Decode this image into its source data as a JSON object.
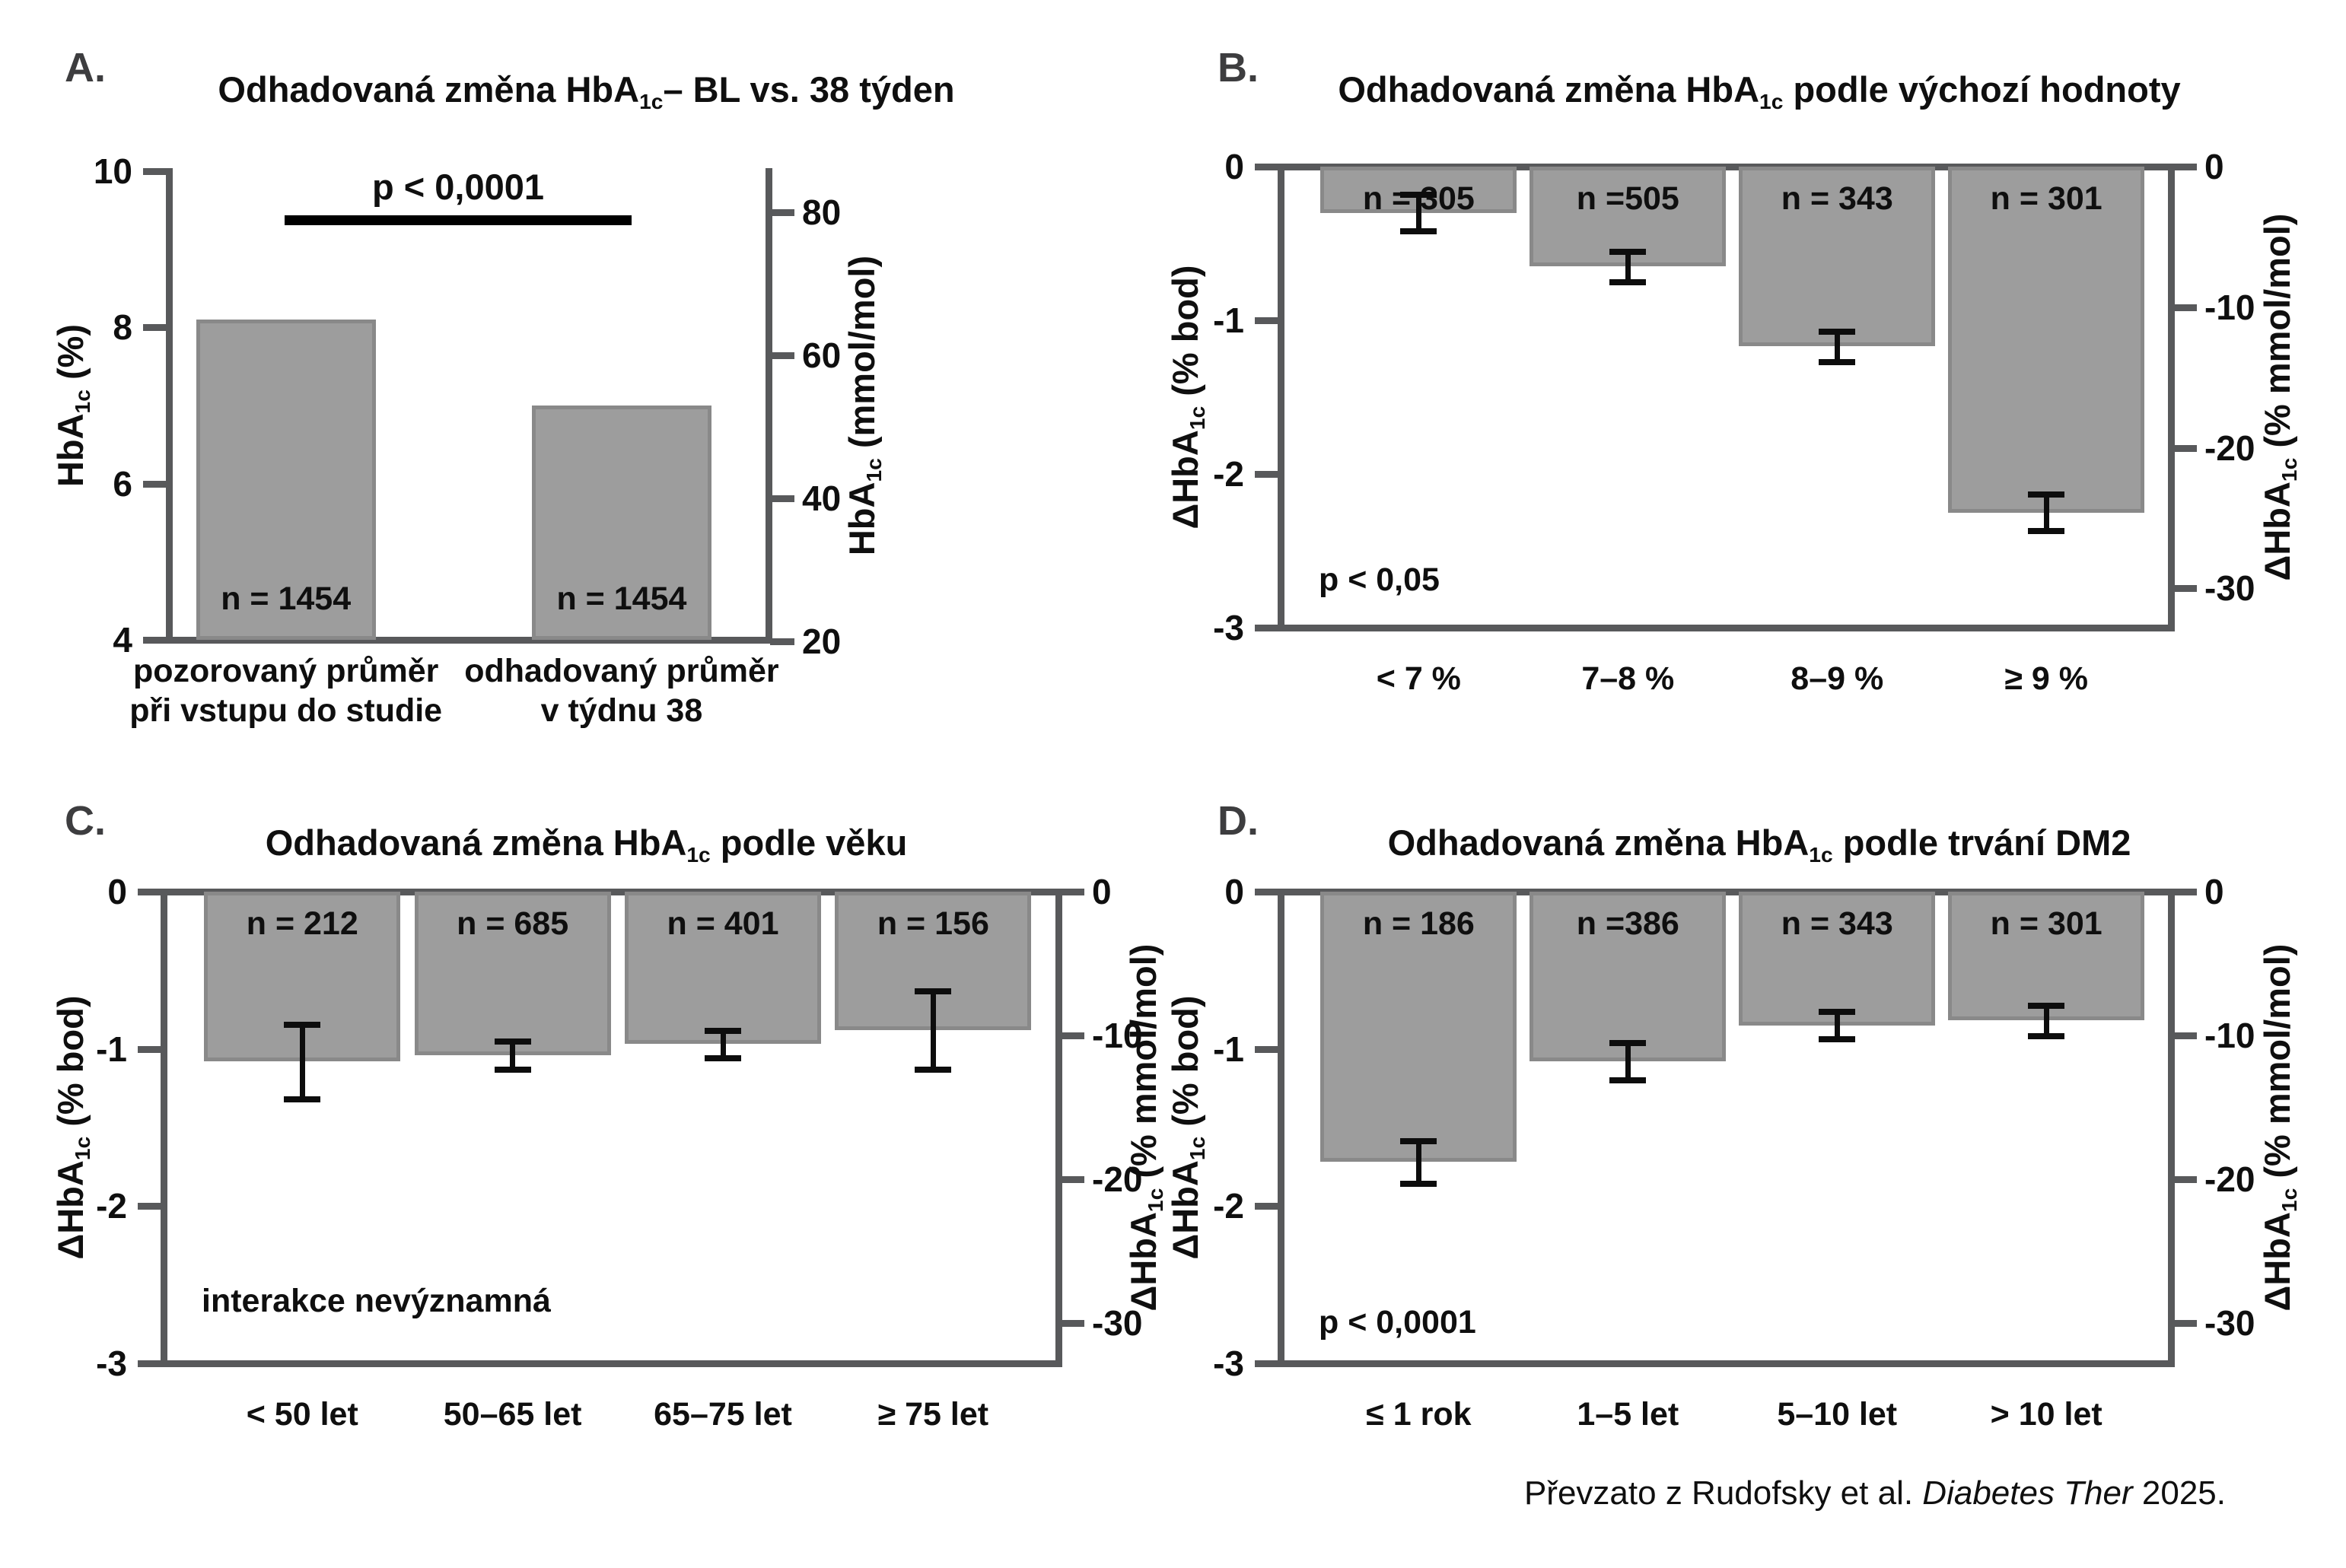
{
  "figure": {
    "background": "#ffffff",
    "bar_fill": "#9d9d9d",
    "bar_border": "#898989",
    "axis_color": "#58595b",
    "error_color": "#0d0d0d",
    "text_color": "#0f0f0f",
    "footer": {
      "pre": "Převzato z Rudofsky et al. ",
      "italic": "Diabetes Ther",
      "post": " 2025."
    }
  },
  "chart_data": [
    {
      "id": "A",
      "letter": "A.",
      "type": "bar",
      "title": "Odhadovaná změna HbA1c – BL vs. 38 týden",
      "title_segs": [
        {
          "t": "Odhadovaná změna HbA"
        },
        {
          "t": "1c",
          "sub": true
        },
        {
          "t": "– BL vs. 38 týden"
        }
      ],
      "categories": [
        "pozorovaný průměr při vstupu do studie",
        "odhadovaný průměr v týdnu 38"
      ],
      "x_labels": [
        [
          "pozorovaný průměr",
          "při vstupu do studie"
        ],
        [
          "odhadovaný průměr",
          "v týdnu 38"
        ]
      ],
      "values": [
        8.1,
        7.0
      ],
      "errors": null,
      "n": [
        "n = 1454",
        "n = 1454"
      ],
      "n_pos": "bottom",
      "ylim": [
        4,
        10
      ],
      "baseline": 4,
      "frame": "axes",
      "grid": false,
      "significance": "p < 0,0001",
      "y_left": {
        "label": "HbA1c (%)",
        "segs": [
          {
            "t": "HbA"
          },
          {
            "t": "1c",
            "sub": true
          },
          {
            "t": " (%)"
          }
        ],
        "tick_labels": [
          "10",
          "8",
          "6",
          "4"
        ],
        "tick_values": [
          10,
          8,
          6,
          4
        ]
      },
      "y_right": {
        "label": "HbA1c (mmol/mol)",
        "segs": [
          {
            "t": "HbA"
          },
          {
            "t": "1c",
            "sub": true
          },
          {
            "t": " (mmol/mol)"
          }
        ],
        "tick_labels": [
          "80",
          "60",
          "40",
          "20"
        ],
        "tick_values": [
          80,
          60,
          40,
          20
        ],
        "map_offset": 2.15,
        "map_scale": 10.929
      }
    },
    {
      "id": "B",
      "letter": "B.",
      "type": "bar",
      "title": "Odhadovaná změna HbA1c podle výchozí hodnoty",
      "title_segs": [
        {
          "t": "Odhadovaná změna HbA"
        },
        {
          "t": "1c",
          "sub": true
        },
        {
          "t": " podle výchozí hodnoty"
        }
      ],
      "categories": [
        "< 7 %",
        "7–8 %",
        "8–9 %",
        "≥ 9 %"
      ],
      "x_labels": [
        [
          "< 7 %"
        ],
        [
          "7–8 %"
        ],
        [
          "8–9 %"
        ],
        [
          "≥ 9 %"
        ]
      ],
      "values": [
        -0.3,
        -0.65,
        -1.17,
        -2.25
      ],
      "errors": [
        0.12,
        0.1,
        0.1,
        0.12
      ],
      "n": [
        "n = 305",
        "n =505",
        "n = 343",
        "n = 301"
      ],
      "n_pos": "top",
      "ylim": [
        -3,
        0
      ],
      "baseline": 0,
      "frame": "box",
      "grid": false,
      "annotation": "p < 0,05",
      "y_left": {
        "label": "ΔHbA1c (% bod)",
        "segs": [
          {
            "t": "ΔHbA"
          },
          {
            "t": "1c",
            "sub": true
          },
          {
            "t": " (% bod)"
          }
        ],
        "tick_labels": [
          "0",
          "-1",
          "-2",
          "-3"
        ],
        "tick_values": [
          0,
          -1,
          -2,
          -3
        ]
      },
      "y_right": {
        "label": "ΔHbA1c (% mmol/mol)",
        "segs": [
          {
            "t": "ΔHbA"
          },
          {
            "t": "1c",
            "sub": true
          },
          {
            "t": " (% mmol/mol)"
          }
        ],
        "tick_labels": [
          "0",
          "-10",
          "-20",
          "-30"
        ],
        "tick_values": [
          0,
          -10,
          -20,
          -30
        ],
        "map_offset": 0,
        "map_scale": 10.929
      }
    },
    {
      "id": "C",
      "letter": "C.",
      "type": "bar",
      "title": "Odhadovaná změna HbA1c podle věku",
      "title_segs": [
        {
          "t": "Odhadovaná změna HbA"
        },
        {
          "t": "1c",
          "sub": true
        },
        {
          "t": " podle věku"
        }
      ],
      "categories": [
        "< 50 let",
        "50–65 let",
        "65–75 let",
        "≥ 75 let"
      ],
      "x_labels": [
        [
          "< 50 let"
        ],
        [
          "50–65 let"
        ],
        [
          "65–75 let"
        ],
        [
          "≥ 75 let"
        ]
      ],
      "values": [
        -1.08,
        -1.04,
        -0.97,
        -0.88
      ],
      "errors": [
        0.24,
        0.09,
        0.09,
        0.25
      ],
      "n": [
        "n = 212",
        "n = 685",
        "n = 401",
        "n = 156"
      ],
      "n_pos": "top",
      "ylim": [
        -3,
        0
      ],
      "baseline": 0,
      "frame": "box",
      "grid": false,
      "annotation": "interakce nevýznamná",
      "y_left": {
        "label": "ΔHbA1c (% bod)",
        "segs": [
          {
            "t": "ΔHbA"
          },
          {
            "t": "1c",
            "sub": true
          },
          {
            "t": " (% bod)"
          }
        ],
        "tick_labels": [
          "0",
          "-1",
          "-2",
          "-3"
        ],
        "tick_values": [
          0,
          -1,
          -2,
          -3
        ]
      },
      "y_right": {
        "label": "ΔHbA1c (% mmol/mol)",
        "segs": [
          {
            "t": "ΔHbA"
          },
          {
            "t": "1c",
            "sub": true
          },
          {
            "t": " (% mmol/mol)"
          }
        ],
        "tick_labels": [
          "0",
          "-10",
          "-20",
          "-30"
        ],
        "tick_values": [
          0,
          -10,
          -20,
          -30
        ],
        "map_offset": 0,
        "map_scale": 10.929
      }
    },
    {
      "id": "D",
      "letter": "D.",
      "type": "bar",
      "title": "Odhadovaná změna HbA1c podle trvání DM2",
      "title_segs": [
        {
          "t": "Odhadovaná změna HbA"
        },
        {
          "t": "1c",
          "sub": true
        },
        {
          "t": " podle trvání DM2"
        }
      ],
      "categories": [
        "≤ 1 rok",
        "1–5 let",
        "5–10 let",
        "> 10 let"
      ],
      "x_labels": [
        [
          "≤ 1 rok"
        ],
        [
          "1–5 let"
        ],
        [
          "5–10 let"
        ],
        [
          "> 10 let"
        ]
      ],
      "values": [
        -1.72,
        -1.08,
        -0.85,
        -0.82
      ],
      "errors": [
        0.14,
        0.12,
        0.09,
        0.1
      ],
      "n": [
        "n = 186",
        "n =386",
        "n = 343",
        "n = 301"
      ],
      "n_pos": "top",
      "ylim": [
        -3,
        0
      ],
      "baseline": 0,
      "frame": "box",
      "grid": false,
      "annotation": "p < 0,0001",
      "y_left": {
        "label": "ΔHbA1c (% bod)",
        "segs": [
          {
            "t": "ΔHbA"
          },
          {
            "t": "1c",
            "sub": true
          },
          {
            "t": " (% bod)"
          }
        ],
        "tick_labels": [
          "0",
          "-1",
          "-2",
          "-3"
        ],
        "tick_values": [
          0,
          -1,
          -2,
          -3
        ]
      },
      "y_right": {
        "label": "ΔHbA1c (% mmol/mol)",
        "segs": [
          {
            "t": "ΔHbA"
          },
          {
            "t": "1c",
            "sub": true
          },
          {
            "t": " (% mmol/mol)"
          }
        ],
        "tick_labels": [
          "0",
          "-10",
          "-20",
          "-30"
        ],
        "tick_values": [
          0,
          -10,
          -20,
          -30
        ],
        "map_offset": 0,
        "map_scale": 10.929
      }
    }
  ]
}
